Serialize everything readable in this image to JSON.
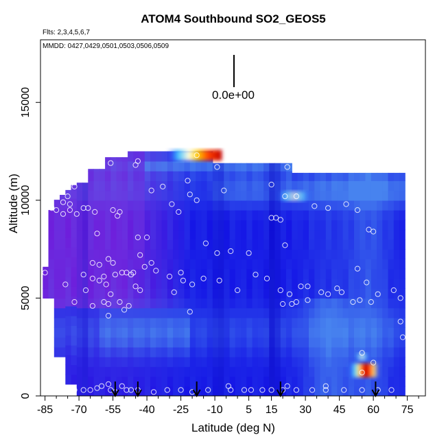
{
  "chart_data": {
    "type": "heatmap",
    "title": "ATOM4 Southbound SO2_GEOS5",
    "flights_note": "Flts: 2,3,4,5,6,7",
    "dates_note": "MMDD: 0427,0429,0501,0503,0506,0509",
    "xlabel": "Latitude (deg N)",
    "ylabel": "Altitude (m)",
    "scale_label": "0.0e+00",
    "xlim": [
      -87,
      83
    ],
    "ylim": [
      0,
      18200
    ],
    "x_ticks": [
      -85,
      -70,
      -55,
      -40,
      -25,
      -10,
      5,
      15,
      30,
      45,
      60,
      75
    ],
    "x_tick_labels": [
      "-85",
      "-70",
      "-55",
      "-40",
      "-25",
      "-10",
      "5",
      "15",
      "30",
      "45",
      "60",
      "75"
    ],
    "y_ticks": [
      0,
      5000,
      10000,
      15000
    ],
    "y_tick_labels": [
      "0",
      "5000",
      "10000",
      "15000"
    ],
    "profile_arrows_lat": [
      -54,
      -44,
      -18,
      19,
      61
    ],
    "hotspots": [
      {
        "lat": -19,
        "alt": 12300,
        "level": 1.0
      },
      {
        "lat": 25,
        "alt": 10200,
        "level": 0.65
      },
      {
        "lat": 56,
        "alt": 1300,
        "level": 1.0
      },
      {
        "lat": 55,
        "alt": 2000,
        "level": 0.7
      }
    ],
    "sample_points": [
      [
        -85,
        6300
      ],
      [
        -82,
        9600
      ],
      [
        -80,
        9500
      ],
      [
        -77,
        9300
      ],
      [
        -75,
        10200
      ],
      [
        -74,
        9800
      ],
      [
        -72,
        10700
      ],
      [
        -70,
        11300
      ],
      [
        -66,
        11800
      ],
      [
        -56,
        11900
      ],
      [
        -45,
        11800
      ],
      [
        -44,
        12000
      ],
      [
        -18,
        12300
      ],
      [
        -9,
        11700
      ],
      [
        22,
        11700
      ],
      [
        -22,
        11000
      ],
      [
        -38,
        10500
      ],
      [
        -33,
        10700
      ],
      [
        -29,
        9800
      ],
      [
        -26,
        9400
      ],
      [
        -21,
        10300
      ],
      [
        -18,
        10000
      ],
      [
        -6,
        10500
      ],
      [
        15,
        10800
      ],
      [
        21,
        10200
      ],
      [
        26,
        10200
      ],
      [
        34,
        9700
      ],
      [
        40,
        9600
      ],
      [
        48,
        9800
      ],
      [
        53,
        9500
      ],
      [
        58,
        8500
      ],
      [
        60,
        8400
      ],
      [
        15,
        9100
      ],
      [
        17,
        9100
      ],
      [
        19,
        9000
      ],
      [
        21,
        7700
      ],
      [
        -77,
        9900
      ],
      [
        -74,
        9500
      ],
      [
        -71,
        9300
      ],
      [
        -68,
        9600
      ],
      [
        -66,
        9600
      ],
      [
        -63,
        9400
      ],
      [
        -62,
        8300
      ],
      [
        -55,
        9500
      ],
      [
        -53,
        9200
      ],
      [
        -52,
        9400
      ],
      [
        -44,
        8100
      ],
      [
        -40,
        8100
      ],
      [
        -43,
        7200
      ],
      [
        -38,
        6800
      ],
      [
        -14,
        7800
      ],
      [
        -9,
        7300
      ],
      [
        -3,
        7400
      ],
      [
        5,
        7300
      ],
      [
        -64,
        6800
      ],
      [
        -61,
        6700
      ],
      [
        -57,
        7000
      ],
      [
        -55,
        6800
      ],
      [
        -49,
        6300
      ],
      [
        -47,
        6200
      ],
      [
        -46,
        6300
      ],
      [
        -41,
        6600
      ],
      [
        -36,
        6400
      ],
      [
        -30,
        6100
      ],
      [
        -25,
        6300
      ],
      [
        -20,
        5700
      ],
      [
        -15,
        6000
      ],
      [
        -8,
        5900
      ],
      [
        0,
        5400
      ],
      [
        8,
        6200
      ],
      [
        13,
        6000
      ],
      [
        19,
        5400
      ],
      [
        23,
        5200
      ],
      [
        28,
        5600
      ],
      [
        31,
        5600
      ],
      [
        37,
        5300
      ],
      [
        40,
        5200
      ],
      [
        44,
        5500
      ],
      [
        46,
        5300
      ],
      [
        53,
        6500
      ],
      [
        57,
        5800
      ],
      [
        62,
        5200
      ],
      [
        69,
        5400
      ],
      [
        72,
        5000
      ],
      [
        -68,
        6200
      ],
      [
        -64,
        6000
      ],
      [
        -61,
        5900
      ],
      [
        -59,
        6100
      ],
      [
        -58,
        5700
      ],
      [
        -56,
        5200
      ],
      [
        -54,
        6200
      ],
      [
        -51,
        6300
      ],
      [
        -45,
        5600
      ],
      [
        -28,
        5300
      ],
      [
        -24,
        5900
      ],
      [
        -76,
        5700
      ],
      [
        -72,
        4800
      ],
      [
        -67,
        5400
      ],
      [
        -64,
        4600
      ],
      [
        -59,
        4800
      ],
      [
        -57,
        4700
      ],
      [
        -52,
        4800
      ],
      [
        -50,
        4400
      ],
      [
        -48,
        4600
      ],
      [
        -43,
        5400
      ],
      [
        -21,
        4300
      ],
      [
        20,
        4700
      ],
      [
        24,
        4700
      ],
      [
        26,
        4800
      ],
      [
        31,
        4900
      ],
      [
        51,
        4800
      ],
      [
        54,
        4900
      ],
      [
        59,
        4800
      ],
      [
        72,
        3800
      ],
      [
        73,
        3000
      ],
      [
        -57,
        4100
      ],
      [
        55,
        2200
      ],
      [
        55,
        1200
      ],
      [
        60,
        1700
      ],
      [
        -85,
        500
      ],
      [
        -72,
        300
      ],
      [
        -65,
        300
      ],
      [
        -62,
        400
      ],
      [
        -60,
        500
      ],
      [
        -56,
        300
      ],
      [
        -54,
        200
      ],
      [
        -49,
        300
      ],
      [
        -47,
        300
      ],
      [
        -44,
        300
      ],
      [
        -37,
        200
      ],
      [
        -31,
        300
      ],
      [
        -25,
        300
      ],
      [
        -20,
        200
      ],
      [
        -13,
        300
      ],
      [
        -4,
        500
      ],
      [
        -3,
        300
      ],
      [
        3,
        300
      ],
      [
        6,
        300
      ],
      [
        11,
        300
      ],
      [
        15,
        300
      ],
      [
        20,
        300
      ],
      [
        26,
        300
      ],
      [
        33,
        300
      ],
      [
        39,
        300
      ],
      [
        47,
        300
      ],
      [
        55,
        300
      ],
      [
        62,
        300
      ],
      [
        68,
        300
      ],
      [
        -68,
        300
      ],
      [
        -57,
        600
      ],
      [
        -51,
        500
      ],
      [
        22,
        500
      ],
      [
        39,
        500
      ]
    ]
  }
}
